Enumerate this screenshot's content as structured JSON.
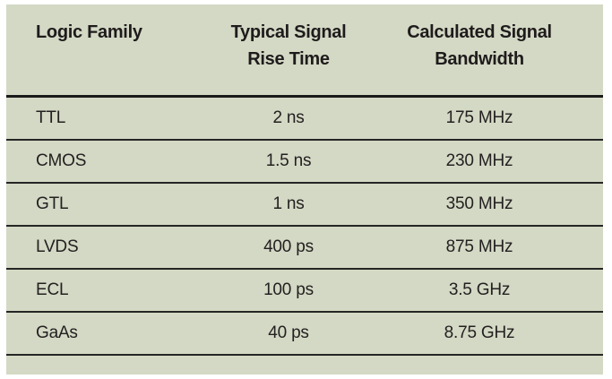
{
  "colors": {
    "page_background": "#ffffff",
    "panel_background": "#d3d9c4",
    "text": "#242021",
    "header_text": "#1f1b1c",
    "header_rule": "#1a1a1a",
    "row_rule": "#262524"
  },
  "chart_data": {
    "type": "table",
    "title": "",
    "columns": [
      {
        "lines": [
          "Logic Family"
        ]
      },
      {
        "lines": [
          "Typical Signal",
          "Rise Time"
        ]
      },
      {
        "lines": [
          "Calculated Signal",
          "Bandwidth"
        ]
      }
    ],
    "rows": [
      [
        "TTL",
        "2 ns",
        "175 MHz"
      ],
      [
        "CMOS",
        "1.5 ns",
        "230 MHz"
      ],
      [
        "GTL",
        "1 ns",
        "350 MHz"
      ],
      [
        "LVDS",
        "400 ps",
        "875 MHz"
      ],
      [
        "ECL",
        "100 ps",
        "3.5 GHz"
      ],
      [
        "GaAs",
        "40 ps",
        "8.75 GHz"
      ]
    ],
    "layout": {
      "grid": "horizontal-rules-only",
      "header_bold": true,
      "column_alignment": [
        "left",
        "center",
        "center"
      ]
    }
  }
}
